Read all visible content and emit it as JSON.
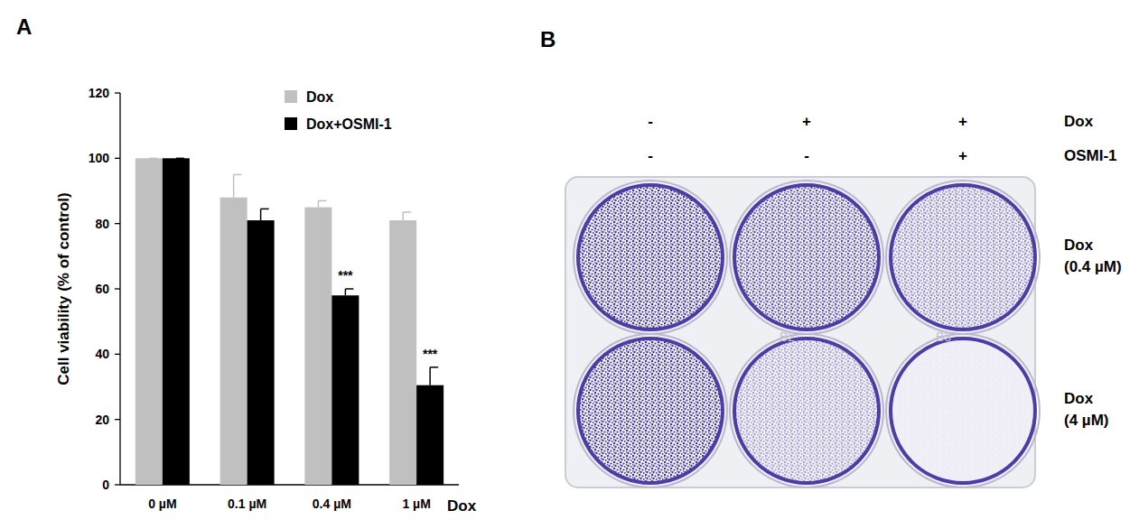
{
  "panel_labels": [
    "A",
    "B"
  ],
  "chart_data": {
    "type": "bar",
    "x_label": "Dox",
    "y_label": "Cell viability (% of control)",
    "categories": [
      "0 µM",
      "0.1 µM",
      "0.4 µM",
      "1 µM"
    ],
    "series": [
      {
        "name": "Dox",
        "color": "#c0c0c0",
        "values": [
          100,
          88,
          85,
          81
        ],
        "errors": [
          0,
          7,
          2,
          2.5
        ]
      },
      {
        "name": "Dox+OSMI-1",
        "color": "#000000",
        "values": [
          100,
          81,
          58,
          30.5
        ],
        "errors": [
          0,
          3.5,
          2,
          5.5
        ],
        "significance": [
          null,
          null,
          "***",
          "***"
        ]
      }
    ],
    "ylim": [
      0,
      120
    ],
    "yticks": [
      0,
      20,
      40,
      60,
      80,
      100,
      120
    ],
    "grid": false,
    "legend": "upper right"
  },
  "panel_b": {
    "conditions": [
      {
        "name": "Dox",
        "marks": [
          "-",
          "+",
          "+"
        ]
      },
      {
        "name": "OSMI-1",
        "marks": [
          "-",
          "-",
          "+"
        ]
      }
    ],
    "rows": [
      [
        "Dox",
        "(0.4 µM)"
      ],
      [
        "Dox",
        "(4 µM)"
      ]
    ],
    "well_labels": [
      "B2",
      "B3"
    ]
  }
}
